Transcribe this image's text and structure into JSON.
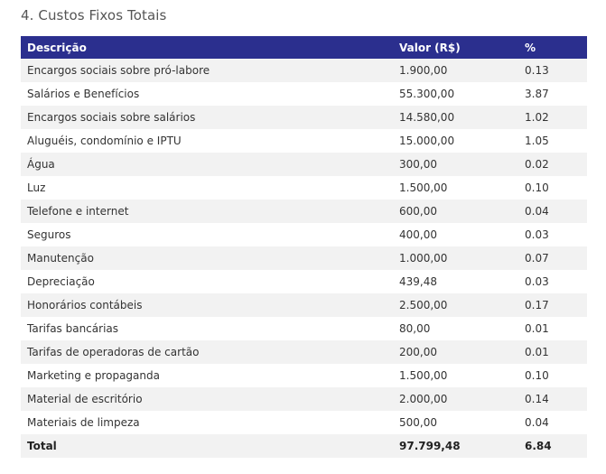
{
  "section": {
    "title": "4. Custos Fixos Totais"
  },
  "table": {
    "headers": {
      "description": "Descrição",
      "value": "Valor (R$)",
      "percent": "%"
    },
    "rows": [
      {
        "description": "Encargos sociais sobre pró-labore",
        "value": "1.900,00",
        "percent": "0.13"
      },
      {
        "description": "Salários e Benefícios",
        "value": "55.300,00",
        "percent": "3.87"
      },
      {
        "description": "Encargos sociais sobre salários",
        "value": "14.580,00",
        "percent": "1.02"
      },
      {
        "description": "Aluguéis, condomínio e IPTU",
        "value": "15.000,00",
        "percent": "1.05"
      },
      {
        "description": "Água",
        "value": "300,00",
        "percent": "0.02"
      },
      {
        "description": "Luz",
        "value": "1.500,00",
        "percent": "0.10"
      },
      {
        "description": "Telefone e internet",
        "value": "600,00",
        "percent": "0.04"
      },
      {
        "description": "Seguros",
        "value": "400,00",
        "percent": "0.03"
      },
      {
        "description": "Manutenção",
        "value": "1.000,00",
        "percent": "0.07"
      },
      {
        "description": "Depreciação",
        "value": "439,48",
        "percent": "0.03"
      },
      {
        "description": "Honorários contábeis",
        "value": "2.500,00",
        "percent": "0.17"
      },
      {
        "description": "Tarifas bancárias",
        "value": "80,00",
        "percent": "0.01"
      },
      {
        "description": "Tarifas de operadoras de cartão",
        "value": "200,00",
        "percent": "0.01"
      },
      {
        "description": "Marketing e propaganda",
        "value": "1.500,00",
        "percent": "0.10"
      },
      {
        "description": "Material de escritório",
        "value": "2.000,00",
        "percent": "0.14"
      },
      {
        "description": "Materiais de limpeza",
        "value": "500,00",
        "percent": "0.04"
      }
    ],
    "total": {
      "label": "Total",
      "value": "97.799,48",
      "percent": "6.84"
    }
  },
  "colors": {
    "header_bg": "#2b2f8e",
    "header_text": "#ffffff",
    "row_alt_bg": "#f2f2f2"
  }
}
